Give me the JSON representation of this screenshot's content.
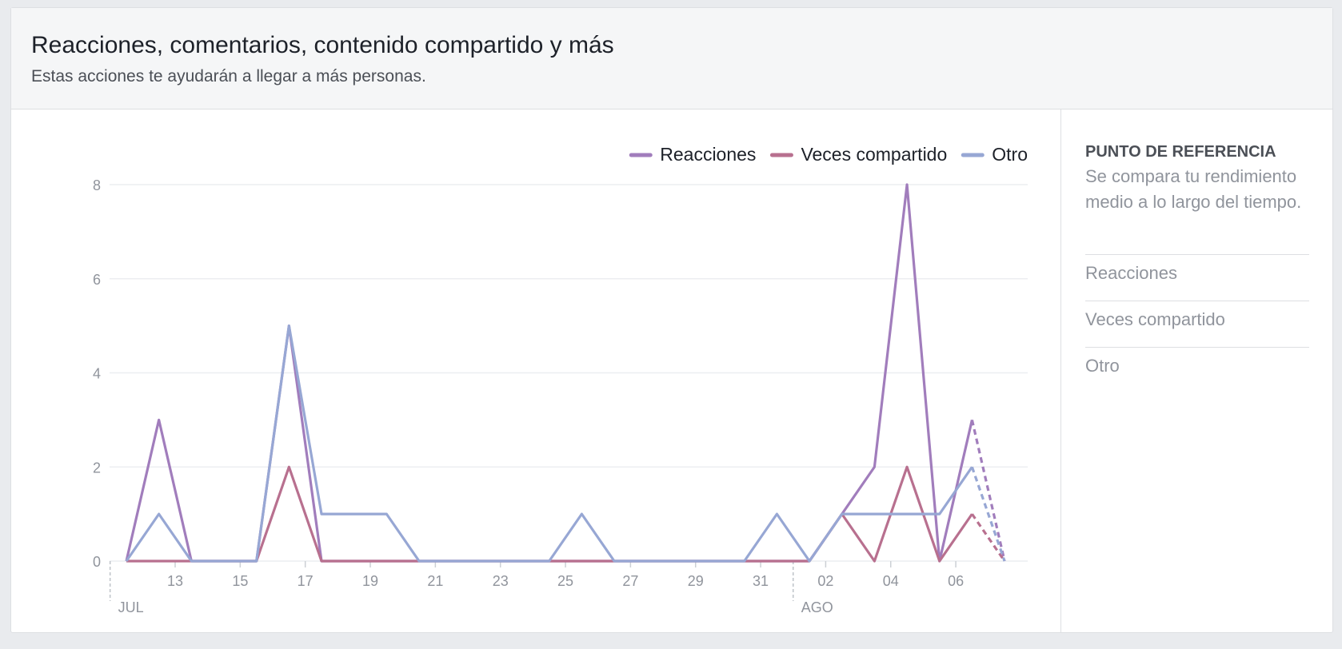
{
  "header": {
    "title": "Reacciones, comentarios, contenido compartido y más",
    "subtitle": "Estas acciones te ayudarán a llegar a más personas."
  },
  "sidebar": {
    "title": "PUNTO DE REFERENCIA",
    "description": "Se compara tu rendimiento medio a lo largo del tiempo.",
    "items": [
      "Reacciones",
      "Veces compartido",
      "Otro"
    ]
  },
  "chart_data": {
    "type": "line",
    "categories": [
      null,
      null,
      "13",
      null,
      "15",
      null,
      "17",
      null,
      "19",
      null,
      "21",
      null,
      "23",
      null,
      "25",
      null,
      "27",
      null,
      "29",
      null,
      "31",
      null,
      "02",
      null,
      "04",
      null,
      "06",
      null
    ],
    "months": [
      "JUL",
      null,
      null,
      null,
      null,
      null,
      null,
      null,
      null,
      null,
      null,
      null,
      null,
      null,
      null,
      null,
      null,
      null,
      null,
      null,
      null,
      "AGO",
      null,
      null,
      null,
      null,
      null,
      null
    ],
    "series": [
      {
        "name": "Reacciones",
        "color": "#a17dbc",
        "values": [
          0,
          3,
          0,
          0,
          0,
          5,
          0,
          0,
          0,
          0,
          0,
          0,
          0,
          0,
          0,
          0,
          0,
          0,
          0,
          0,
          0,
          0,
          1,
          2,
          8,
          0,
          3,
          0
        ]
      },
      {
        "name": "Veces compartido",
        "color": "#b8708f",
        "values": [
          0,
          0,
          0,
          0,
          0,
          2,
          0,
          0,
          0,
          0,
          0,
          0,
          0,
          0,
          0,
          0,
          0,
          0,
          0,
          0,
          0,
          0,
          1,
          0,
          2,
          0,
          1,
          0
        ]
      },
      {
        "name": "Otro",
        "color": "#97a7d4",
        "values": [
          0,
          1,
          0,
          0,
          0,
          5,
          1,
          1,
          1,
          0,
          0,
          0,
          0,
          0,
          1,
          0,
          0,
          0,
          0,
          0,
          1,
          0,
          1,
          1,
          1,
          1,
          2,
          0
        ]
      }
    ],
    "ylim": [
      0,
      8
    ],
    "yticks": [
      0,
      2,
      4,
      6,
      8
    ],
    "grid": true,
    "legend": "top-right",
    "dashed_last": true
  }
}
